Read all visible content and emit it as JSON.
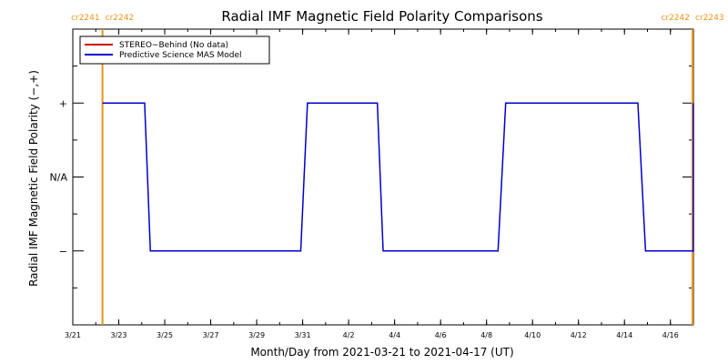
{
  "chart_data": {
    "type": "line",
    "title": "Radial IMF Magnetic Field Polarity Comparisons",
    "xlabel": "Month/Day from 2021-03-21 to 2021-04-17 (UT)",
    "ylabel": "Radial IMF Magnetic Field Polarity (−,+)",
    "x_tick_labels": [
      "3/21",
      "3/23",
      "3/25",
      "3/27",
      "3/29",
      "3/31",
      "4/2",
      "4/4",
      "4/6",
      "4/8",
      "4/10",
      "4/12",
      "4/14",
      "4/16"
    ],
    "x_tick_values": [
      "2021-03-21",
      "2021-03-23",
      "2021-03-25",
      "2021-03-27",
      "2021-03-29",
      "2021-03-31",
      "2021-04-02",
      "2021-04-04",
      "2021-04-06",
      "2021-04-08",
      "2021-04-10",
      "2021-04-12",
      "2021-04-14",
      "2021-04-16"
    ],
    "xlim": [
      "2021-03-21",
      "2021-04-17"
    ],
    "y_categories": [
      "−",
      "N/A",
      "+"
    ],
    "y_category_values": [
      -1,
      0,
      1
    ],
    "ylim": [
      -2,
      2
    ],
    "legend": {
      "placement": "top-left",
      "entries": [
        {
          "name": "STEREO−Behind (No data)",
          "color": "#cc0000"
        },
        {
          "name": "Predictive Science MAS Model",
          "color": "#0000cc"
        }
      ]
    },
    "series": [
      {
        "name": "STEREO−Behind (No data)",
        "color": "#cc0000",
        "points": []
      },
      {
        "name": "Predictive Science MAS Model",
        "color": "#0000cc",
        "points": [
          {
            "x": "2021-03-22 07:00",
            "y": 1
          },
          {
            "x": "2021-03-24 03:00",
            "y": 1
          },
          {
            "x": "2021-03-24 09:00",
            "y": -1
          },
          {
            "x": "2021-03-30 22:00",
            "y": -1
          },
          {
            "x": "2021-03-31 05:00",
            "y": 1
          },
          {
            "x": "2021-04-03 06:00",
            "y": 1
          },
          {
            "x": "2021-04-03 12:00",
            "y": -1
          },
          {
            "x": "2021-04-08 12:00",
            "y": -1
          },
          {
            "x": "2021-04-08 20:00",
            "y": 1
          },
          {
            "x": "2021-04-14 14:00",
            "y": 1
          },
          {
            "x": "2021-04-14 22:00",
            "y": -1
          },
          {
            "x": "2021-04-17 08:00",
            "y": -1
          },
          {
            "x": "2021-04-17 16:00",
            "y": 1
          },
          {
            "x": "2021-04-18 00:00",
            "y": 1
          }
        ]
      }
    ],
    "carrington_markers": [
      {
        "label_left": "cr2241",
        "label_right": "cr2242",
        "x": "2021-03-22 07:00",
        "color": "#e8941a"
      },
      {
        "label_left": "cr2242",
        "label_right": "cr2243",
        "x": "2021-04-18 12:00",
        "color": "#e8941a"
      }
    ]
  }
}
